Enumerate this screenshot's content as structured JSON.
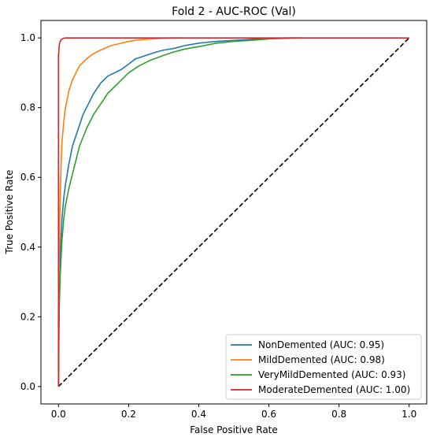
{
  "chart_data": {
    "type": "line",
    "title": "Fold 2 - AUC-ROC (Val)",
    "xlabel": "False Positive Rate",
    "ylabel": "True Positive Rate",
    "xlim": [
      -0.05,
      1.05
    ],
    "ylim": [
      -0.05,
      1.05
    ],
    "xticks": [
      "0.0",
      "0.2",
      "0.4",
      "0.6",
      "0.8",
      "1.0"
    ],
    "yticks": [
      "0.0",
      "0.2",
      "0.4",
      "0.6",
      "0.8",
      "1.0"
    ],
    "grid": false,
    "legend_position": "lower-right",
    "series": [
      {
        "name": "NonDemented (AUC: 0.95)",
        "color": "#1f77b4",
        "x": [
          0,
          0.002,
          0.005,
          0.01,
          0.015,
          0.02,
          0.03,
          0.04,
          0.05,
          0.06,
          0.07,
          0.08,
          0.1,
          0.12,
          0.14,
          0.16,
          0.18,
          0.2,
          0.22,
          0.25,
          0.28,
          0.3,
          0.33,
          0.36,
          0.4,
          0.45,
          0.5,
          0.55,
          0.6,
          0.65,
          0.69
        ],
        "y": [
          0,
          0.24,
          0.38,
          0.48,
          0.54,
          0.58,
          0.64,
          0.69,
          0.72,
          0.75,
          0.78,
          0.8,
          0.84,
          0.87,
          0.89,
          0.9,
          0.91,
          0.925,
          0.94,
          0.95,
          0.96,
          0.965,
          0.97,
          0.978,
          0.985,
          0.99,
          0.993,
          0.996,
          0.998,
          1.0,
          1.0
        ]
      },
      {
        "name": "MildDemented (AUC: 0.98)",
        "color": "#ff7f0e",
        "x": [
          0,
          0.002,
          0.004,
          0.007,
          0.01,
          0.015,
          0.02,
          0.03,
          0.04,
          0.05,
          0.06,
          0.08,
          0.1,
          0.12,
          0.15,
          0.18,
          0.2,
          0.22,
          0.25,
          0.28,
          0.3,
          0.33,
          0.35
        ],
        "y": [
          0,
          0.35,
          0.5,
          0.62,
          0.7,
          0.76,
          0.8,
          0.85,
          0.88,
          0.9,
          0.92,
          0.94,
          0.955,
          0.965,
          0.978,
          0.985,
          0.99,
          0.993,
          0.996,
          0.998,
          0.999,
          1.0,
          1.0
        ]
      },
      {
        "name": "VeryMildDemented (AUC: 0.93)",
        "color": "#2ca02c",
        "x": [
          0,
          0.002,
          0.005,
          0.01,
          0.015,
          0.02,
          0.03,
          0.04,
          0.05,
          0.06,
          0.08,
          0.1,
          0.12,
          0.14,
          0.16,
          0.18,
          0.2,
          0.23,
          0.26,
          0.3,
          0.33,
          0.36,
          0.4,
          0.45,
          0.5,
          0.55,
          0.6,
          0.65,
          0.69
        ],
        "y": [
          0,
          0.22,
          0.32,
          0.42,
          0.48,
          0.52,
          0.57,
          0.61,
          0.65,
          0.69,
          0.74,
          0.78,
          0.81,
          0.84,
          0.86,
          0.88,
          0.9,
          0.92,
          0.935,
          0.95,
          0.96,
          0.968,
          0.975,
          0.985,
          0.99,
          0.993,
          0.997,
          0.999,
          1.0
        ]
      },
      {
        "name": "ModerateDemented (AUC: 1.00)",
        "color": "#d62728",
        "x": [
          0,
          0,
          0.001,
          0.002,
          0.003,
          0.005,
          0.008,
          0.012,
          0.02,
          0.05,
          1.0
        ],
        "y": [
          0,
          0.95,
          0.96,
          0.975,
          0.985,
          0.99,
          0.995,
          0.998,
          1.0,
          1.0,
          1.0
        ]
      }
    ],
    "reference_line": {
      "x": [
        0,
        1
      ],
      "y": [
        0,
        1
      ],
      "color": "#000000",
      "style": "dashed"
    }
  }
}
